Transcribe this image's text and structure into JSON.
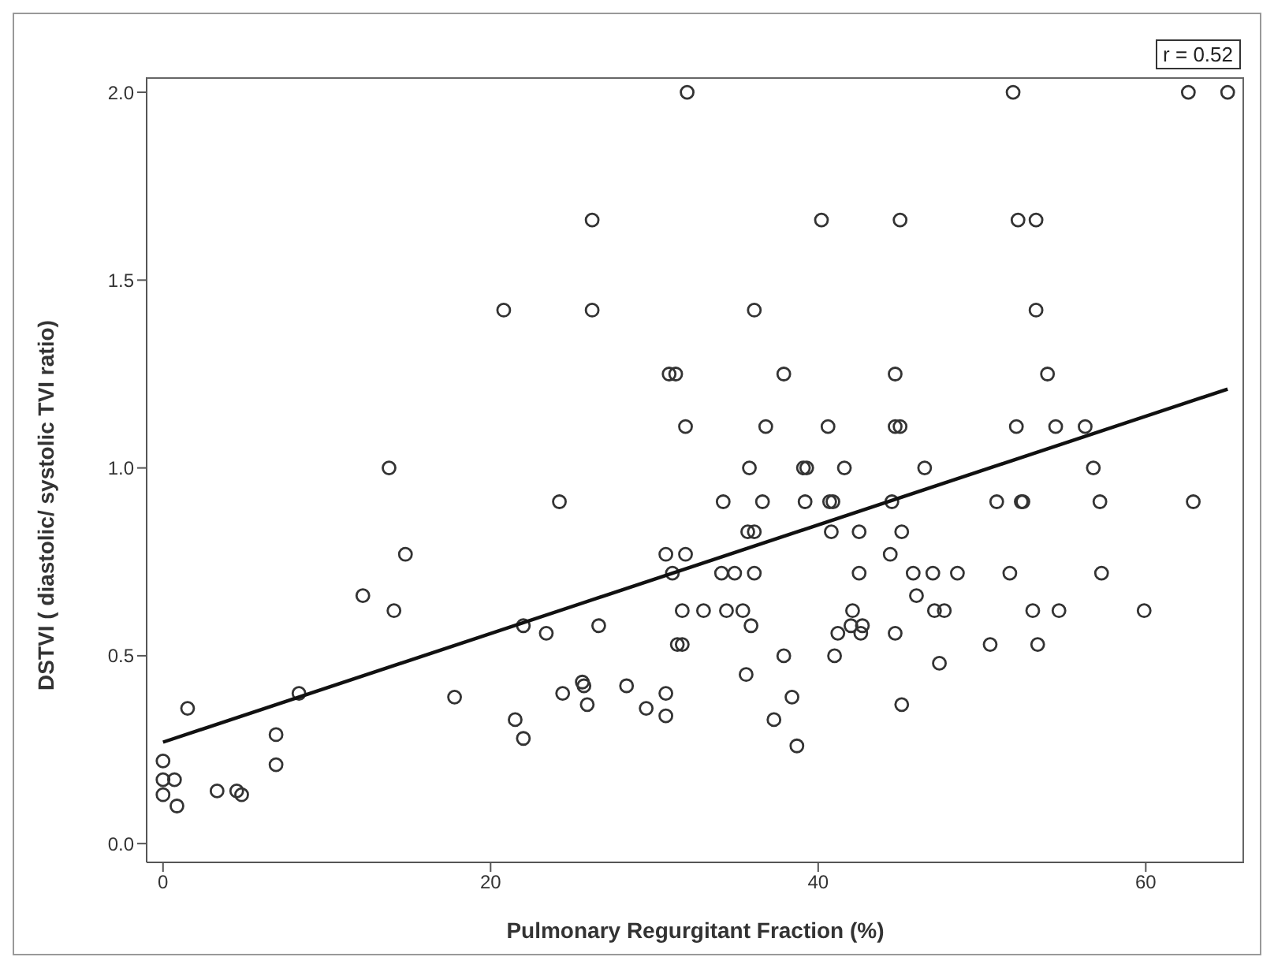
{
  "chart_data": {
    "type": "scatter",
    "xlabel": "Pulmonary Regurgitant Fraction (%)",
    "ylabel": "DSTVI ( diastolic/ systolic TVI ratio)",
    "annotations": [
      "r = 0.52"
    ],
    "xlim": [
      -1,
      66
    ],
    "ylim": [
      -0.05,
      2.04
    ],
    "xticks": [
      0,
      20,
      40,
      60
    ],
    "yticks": [
      {
        "value": 0,
        "label": "0.0"
      },
      {
        "value": 0.5,
        "label": "0.5"
      },
      {
        "value": 1,
        "label": "1.0"
      },
      {
        "value": 1.5,
        "label": "1.5"
      },
      {
        "value": 2,
        "label": "2.0"
      }
    ],
    "marker": "circle",
    "series": [
      {
        "color": "#333333",
        "x": [
          0,
          0,
          0.7,
          0,
          0.85,
          1.5,
          3.3,
          4.5,
          4.8,
          6.9,
          6.9,
          8.3,
          13.8,
          12.2,
          14.1,
          14.8,
          17.8,
          21.5,
          22.0,
          22.0,
          23.4,
          24.2,
          24.4,
          25.6,
          25.7,
          25.9,
          26.6,
          28.3,
          29.5,
          30.7,
          30.7,
          30.7,
          31.9,
          31.1,
          31.7,
          31.4,
          31.7,
          33.0,
          32.0,
          26.2,
          20.8,
          26.2,
          30.9,
          31.3,
          31.9,
          51.9,
          62.6,
          65.0,
          40.2,
          45.0,
          52.2,
          53.3,
          36.1,
          53.3,
          37.9,
          44.7,
          54.0,
          36.8,
          40.6,
          44.7,
          45.0,
          52.1,
          54.5,
          56.3,
          35.8,
          39.1,
          39.3,
          41.6,
          46.5,
          56.8,
          34.2,
          36.6,
          39.2,
          40.7,
          40.9,
          44.5,
          50.9,
          52.4,
          52.5,
          57.2,
          62.9,
          35.7,
          36.1,
          40.8,
          42.5,
          45.1,
          44.4,
          34.1,
          34.9,
          36.1,
          42.5,
          45.8,
          47.0,
          48.5,
          51.7,
          57.3,
          46.0,
          34.4,
          35.4,
          42.1,
          47.1,
          47.7,
          53.1,
          54.7,
          59.9,
          35.9,
          42.0,
          42.7,
          41.2,
          42.6,
          44.7,
          50.5,
          53.4,
          37.9,
          41.0,
          47.4,
          35.6,
          38.4,
          45.1,
          37.3,
          38.7
        ],
        "values": [
          0.22,
          0.17,
          0.17,
          0.13,
          0.1,
          0.36,
          0.14,
          0.14,
          0.13,
          0.29,
          0.21,
          0.4,
          1.0,
          0.66,
          0.62,
          0.77,
          0.39,
          0.33,
          0.28,
          0.58,
          0.56,
          0.91,
          0.4,
          0.43,
          0.42,
          0.37,
          0.58,
          0.42,
          0.36,
          0.4,
          0.34,
          0.77,
          0.77,
          0.72,
          0.62,
          0.53,
          0.53,
          0.62,
          2.0,
          1.66,
          1.42,
          1.42,
          1.25,
          1.25,
          1.11,
          2.0,
          2.0,
          2.0,
          1.66,
          1.66,
          1.66,
          1.66,
          1.42,
          1.42,
          1.25,
          1.25,
          1.25,
          1.11,
          1.11,
          1.11,
          1.11,
          1.11,
          1.11,
          1.11,
          1.0,
          1.0,
          1.0,
          1.0,
          1.0,
          1.0,
          0.91,
          0.91,
          0.91,
          0.91,
          0.91,
          0.91,
          0.91,
          0.91,
          0.91,
          0.91,
          0.91,
          0.83,
          0.83,
          0.83,
          0.83,
          0.83,
          0.77,
          0.72,
          0.72,
          0.72,
          0.72,
          0.72,
          0.72,
          0.72,
          0.72,
          0.72,
          0.66,
          0.62,
          0.62,
          0.62,
          0.62,
          0.62,
          0.62,
          0.62,
          0.62,
          0.58,
          0.58,
          0.58,
          0.56,
          0.56,
          0.56,
          0.53,
          0.53,
          0.5,
          0.5,
          0.48,
          0.45,
          0.39,
          0.37,
          0.33,
          0.26
        ]
      },
      {
        "type": "line",
        "marker": "none",
        "color": "#111111",
        "x": [
          0,
          65
        ],
        "values": [
          0.27,
          1.21
        ]
      }
    ]
  }
}
